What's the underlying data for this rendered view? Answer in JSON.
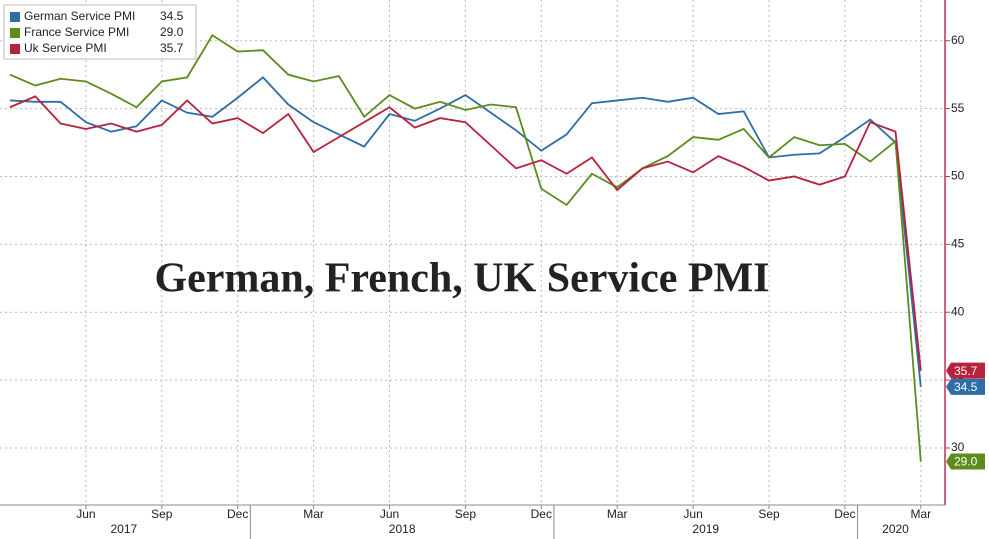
{
  "chart_data": {
    "type": "line",
    "annotation": "German, French, UK Service PMI",
    "categories": [
      null,
      null,
      null,
      "Jun",
      null,
      null,
      "Sep",
      null,
      null,
      "Dec",
      null,
      null,
      "Mar",
      null,
      null,
      "Jun",
      null,
      null,
      "Sep",
      null,
      null,
      "Dec",
      null,
      null,
      "Mar",
      null,
      null,
      "Jun",
      null,
      null,
      "Sep",
      null,
      null,
      "Dec",
      null,
      null,
      "Mar"
    ],
    "year_groups": [
      {
        "label": "2017",
        "first": 0,
        "count": 10
      },
      {
        "label": "2018",
        "first": 10,
        "count": 12
      },
      {
        "label": "2019",
        "first": 22,
        "count": 12
      },
      {
        "label": "2020",
        "first": 34,
        "count": 3
      }
    ],
    "series": [
      {
        "name": "German Service PMI",
        "color": "#2f6da6",
        "values": [
          55.6,
          55.5,
          55.5,
          54.0,
          53.3,
          53.7,
          55.6,
          54.7,
          54.4,
          55.8,
          57.3,
          55.3,
          54.0,
          53.1,
          52.2,
          54.6,
          54.1,
          55.0,
          56.0,
          54.7,
          53.4,
          51.9,
          53.1,
          55.4,
          55.6,
          55.8,
          55.5,
          55.8,
          54.6,
          54.8,
          51.4,
          51.6,
          51.7,
          52.9,
          54.2,
          52.5,
          34.5
        ]
      },
      {
        "name": "France Service PMI",
        "color": "#5b8c1c",
        "values": [
          57.5,
          56.7,
          57.2,
          57.0,
          56.1,
          55.1,
          57.0,
          57.3,
          60.4,
          59.2,
          59.3,
          57.5,
          57.0,
          57.4,
          54.4,
          56.0,
          55.0,
          55.5,
          54.9,
          55.3,
          55.1,
          49.1,
          47.9,
          50.2,
          49.2,
          50.6,
          51.5,
          52.9,
          52.7,
          53.5,
          51.4,
          52.9,
          52.3,
          52.4,
          51.1,
          52.6,
          29.0
        ],
        "value_labels": [
          null,
          null,
          null,
          null,
          null,
          null,
          null,
          null,
          null,
          null,
          null,
          null,
          null,
          null,
          null,
          null,
          null,
          null,
          null,
          null,
          null,
          null,
          null,
          null,
          null,
          null,
          null,
          null,
          null,
          null,
          null,
          null,
          null,
          null,
          null,
          null,
          "29.0"
        ]
      },
      {
        "name": "Uk Service PMI",
        "color": "#b7223c",
        "values": [
          55.1,
          55.9,
          53.9,
          53.5,
          53.9,
          53.3,
          53.8,
          55.6,
          53.9,
          54.3,
          53.2,
          54.6,
          51.8,
          52.9,
          54.0,
          55.1,
          53.6,
          54.3,
          54.0,
          52.3,
          50.6,
          51.2,
          50.2,
          51.4,
          49.0,
          50.6,
          51.1,
          50.3,
          51.5,
          50.7,
          49.7,
          50.0,
          49.4,
          50.0,
          54.0,
          53.3,
          35.7
        ]
      }
    ],
    "ylim": [
      25.8,
      63
    ],
    "yticks": [
      30,
      35,
      40,
      45,
      50,
      55,
      60
    ],
    "grid": true
  }
}
